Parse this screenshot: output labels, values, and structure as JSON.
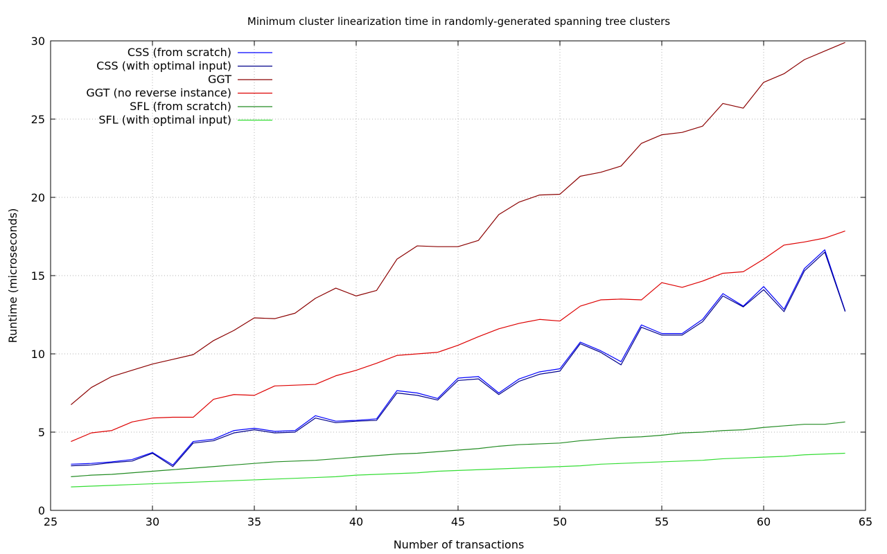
{
  "chart_data": {
    "type": "line",
    "title": "Minimum cluster linearization time in randomly-generated spanning tree clusters",
    "xlabel": "Number of transactions",
    "ylabel": "Runtime (microseconds)",
    "xlim": [
      25,
      65
    ],
    "ylim": [
      0,
      30
    ],
    "xticks": [
      25,
      30,
      35,
      40,
      45,
      50,
      55,
      60,
      65
    ],
    "yticks": [
      0,
      5,
      10,
      15,
      20,
      25,
      30
    ],
    "grid": true,
    "legend_position": "top-left",
    "x": [
      26,
      27,
      28,
      29,
      30,
      31,
      32,
      33,
      34,
      35,
      36,
      37,
      38,
      39,
      40,
      41,
      42,
      43,
      44,
      45,
      46,
      47,
      48,
      49,
      50,
      51,
      52,
      53,
      54,
      55,
      56,
      57,
      58,
      59,
      60,
      61,
      62,
      63,
      64
    ],
    "series": [
      {
        "name": "CSS (from scratch)",
        "color": "#0000ff",
        "values": [
          2.95,
          3.0,
          3.1,
          3.25,
          3.7,
          2.9,
          4.4,
          4.55,
          5.1,
          5.25,
          5.05,
          5.1,
          6.05,
          5.7,
          5.75,
          5.85,
          7.65,
          7.5,
          7.15,
          8.45,
          8.55,
          7.5,
          8.4,
          8.85,
          9.05,
          10.75,
          10.2,
          9.5,
          11.85,
          11.3,
          11.3,
          12.2,
          13.85,
          13.05,
          14.3,
          12.85,
          15.45,
          16.65,
          12.75
        ]
      },
      {
        "name": "CSS (with optimal input)",
        "color": "#00008b",
        "values": [
          2.85,
          2.9,
          3.05,
          3.15,
          3.65,
          2.8,
          4.3,
          4.45,
          4.95,
          5.15,
          4.95,
          5.0,
          5.9,
          5.6,
          5.7,
          5.75,
          7.5,
          7.35,
          7.05,
          8.3,
          8.4,
          7.4,
          8.25,
          8.7,
          8.9,
          10.65,
          10.1,
          9.3,
          11.7,
          11.2,
          11.2,
          12.05,
          13.7,
          13.0,
          14.1,
          12.7,
          15.3,
          16.5,
          12.7
        ]
      },
      {
        "name": "GGT",
        "color": "#8b0000",
        "values": [
          6.75,
          7.85,
          8.55,
          8.95,
          9.35,
          9.65,
          9.95,
          10.85,
          11.5,
          12.3,
          12.25,
          12.6,
          13.55,
          14.2,
          13.7,
          14.05,
          16.05,
          16.9,
          16.85,
          16.85,
          17.25,
          18.9,
          19.7,
          20.15,
          20.2,
          21.35,
          21.6,
          22.0,
          23.45,
          24.0,
          24.15,
          24.55,
          26.0,
          25.7,
          27.35,
          27.9,
          28.8,
          29.35,
          29.9
        ]
      },
      {
        "name": "GGT (no reverse instance)",
        "color": "#dd0000",
        "values": [
          4.4,
          4.95,
          5.1,
          5.65,
          5.9,
          5.95,
          5.95,
          7.1,
          7.4,
          7.35,
          7.95,
          8.0,
          8.05,
          8.6,
          8.95,
          9.4,
          9.9,
          10.0,
          10.1,
          10.55,
          11.1,
          11.6,
          11.95,
          12.2,
          12.1,
          13.05,
          13.45,
          13.5,
          13.45,
          14.55,
          14.25,
          14.65,
          15.15,
          15.25,
          16.05,
          16.95,
          17.15,
          17.4,
          17.85
        ]
      },
      {
        "name": "SFL (from scratch)",
        "color": "#228b22",
        "values": [
          2.15,
          2.25,
          2.3,
          2.4,
          2.5,
          2.6,
          2.7,
          2.8,
          2.9,
          3.0,
          3.1,
          3.15,
          3.2,
          3.3,
          3.4,
          3.5,
          3.6,
          3.65,
          3.75,
          3.85,
          3.95,
          4.1,
          4.2,
          4.25,
          4.3,
          4.45,
          4.55,
          4.65,
          4.7,
          4.8,
          4.95,
          5.0,
          5.1,
          5.15,
          5.3,
          5.4,
          5.5,
          5.5,
          5.65
        ]
      },
      {
        "name": "SFL (with optimal input)",
        "color": "#33dd33",
        "values": [
          1.5,
          1.55,
          1.6,
          1.65,
          1.7,
          1.75,
          1.8,
          1.85,
          1.9,
          1.95,
          2.0,
          2.05,
          2.1,
          2.15,
          2.25,
          2.3,
          2.35,
          2.4,
          2.5,
          2.55,
          2.6,
          2.65,
          2.7,
          2.75,
          2.8,
          2.85,
          2.95,
          3.0,
          3.05,
          3.1,
          3.15,
          3.2,
          3.3,
          3.35,
          3.4,
          3.45,
          3.55,
          3.6,
          3.65
        ]
      }
    ]
  }
}
